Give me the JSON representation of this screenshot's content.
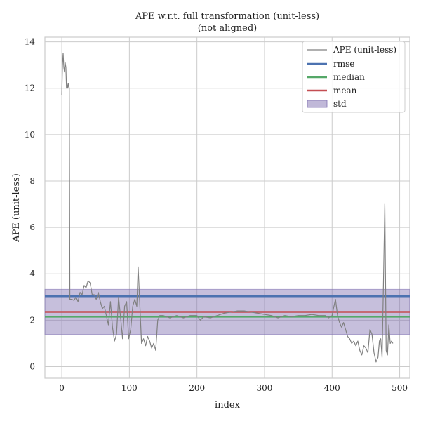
{
  "chart_data": {
    "type": "line",
    "title": "APE w.r.t. full transformation (unit-less)",
    "subtitle": "(not aligned)",
    "xlabel": "index",
    "ylabel": "APE (unit-less)",
    "xlim": [
      -25,
      515
    ],
    "ylim": [
      -0.5,
      14.2
    ],
    "xticks": [
      0,
      100,
      200,
      300,
      400,
      500
    ],
    "yticks": [
      0,
      2,
      4,
      6,
      8,
      10,
      12,
      14
    ],
    "grid": true,
    "legend_position": "top-right",
    "series": [
      {
        "name": "APE (unit-less)",
        "color": "#808080",
        "x": [
          0,
          1,
          2,
          3,
          4,
          5,
          6,
          7,
          8,
          9,
          10,
          11,
          12,
          13,
          14,
          15,
          18,
          21,
          24,
          27,
          30,
          33,
          36,
          39,
          42,
          45,
          48,
          51,
          54,
          57,
          60,
          63,
          66,
          69,
          72,
          75,
          78,
          81,
          84,
          87,
          90,
          93,
          96,
          99,
          102,
          105,
          108,
          111,
          113,
          115,
          118,
          121,
          124,
          127,
          130,
          133,
          136,
          139,
          142,
          145,
          150,
          160,
          170,
          180,
          190,
          200,
          205,
          210,
          220,
          230,
          240,
          250,
          260,
          270,
          280,
          290,
          300,
          310,
          320,
          330,
          340,
          350,
          360,
          370,
          380,
          390,
          395,
          400,
          402,
          405,
          408,
          411,
          414,
          417,
          420,
          423,
          426,
          429,
          432,
          435,
          438,
          441,
          444,
          447,
          450,
          453,
          456,
          459,
          462,
          465,
          468,
          470,
          472,
          474,
          476,
          478,
          480,
          482,
          484,
          486,
          488,
          490
        ],
        "y": [
          11.7,
          13.0,
          13.5,
          12.9,
          12.7,
          13.1,
          12.9,
          12.0,
          12.2,
          12.0,
          12.2,
          12.0,
          2.9,
          2.9,
          2.9,
          2.9,
          2.85,
          3.0,
          2.8,
          3.2,
          3.1,
          3.5,
          3.4,
          3.7,
          3.6,
          3.1,
          3.1,
          2.9,
          3.2,
          2.8,
          2.5,
          2.6,
          2.2,
          1.8,
          2.8,
          1.7,
          1.1,
          1.4,
          3.0,
          2.1,
          1.2,
          2.6,
          2.8,
          1.2,
          1.6,
          2.6,
          2.9,
          2.6,
          4.3,
          3.0,
          1.0,
          1.2,
          0.9,
          1.3,
          1.1,
          0.8,
          1.0,
          0.7,
          2.0,
          2.2,
          2.2,
          2.1,
          2.2,
          2.1,
          2.2,
          2.2,
          2.0,
          2.15,
          2.1,
          2.2,
          2.3,
          2.35,
          2.4,
          2.4,
          2.35,
          2.3,
          2.25,
          2.2,
          2.1,
          2.2,
          2.15,
          2.2,
          2.2,
          2.25,
          2.2,
          2.2,
          2.1,
          2.2,
          2.5,
          2.9,
          2.2,
          1.9,
          1.7,
          1.9,
          1.6,
          1.3,
          1.2,
          1.0,
          1.1,
          0.9,
          1.1,
          0.7,
          0.5,
          0.9,
          0.8,
          0.6,
          1.6,
          1.4,
          0.6,
          0.2,
          0.4,
          1.1,
          1.2,
          0.4,
          3.5,
          7.0,
          0.7,
          0.5,
          1.8,
          1.0,
          1.1,
          1.0
        ]
      },
      {
        "name": "rmse",
        "color": "#4c72b0",
        "value": 3.03
      },
      {
        "name": "median",
        "color": "#55a868",
        "value": 2.15
      },
      {
        "name": "mean",
        "color": "#c44e52",
        "value": 2.36
      },
      {
        "name": "std",
        "color": "#8172b2",
        "range": [
          1.39,
          3.33
        ]
      }
    ]
  }
}
